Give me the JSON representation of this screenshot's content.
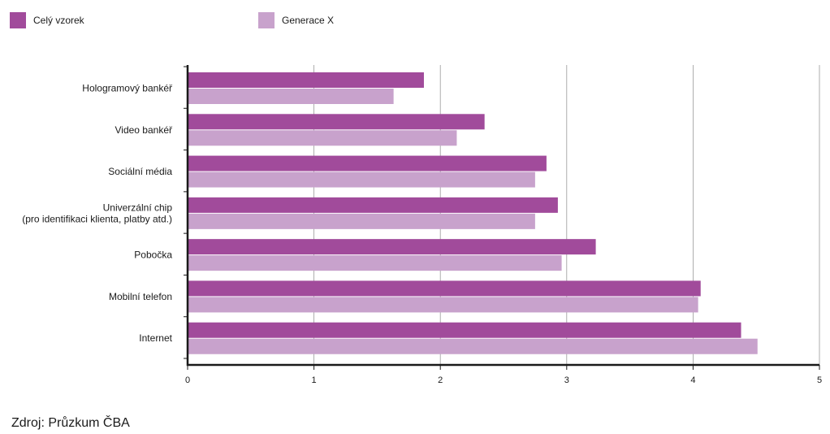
{
  "legend": {
    "items": [
      {
        "label": "Celý vzorek",
        "color": "#a14b9b"
      },
      {
        "label": "Generace X",
        "color": "#c8a2cc"
      }
    ]
  },
  "chart_data": {
    "type": "bar",
    "orientation": "horizontal",
    "categories": [
      "Hologramový bankéř",
      "Video bankéř",
      "Sociální média",
      "Univerzální chip\n(pro identifikaci klienta, platby atd.)",
      "Pobočka",
      "Mobilní telefon",
      "Internet"
    ],
    "series": [
      {
        "name": "Celý vzorek",
        "color": "#a14b9b",
        "values": [
          1.87,
          2.35,
          2.84,
          2.93,
          3.23,
          4.06,
          4.38
        ]
      },
      {
        "name": "Generace X",
        "color": "#c8a2cc",
        "values": [
          1.63,
          2.13,
          2.75,
          2.75,
          2.96,
          4.04,
          4.51
        ]
      }
    ],
    "xlim": [
      0,
      5
    ],
    "xticks": [
      "0",
      "1",
      "2",
      "3",
      "4",
      "5"
    ],
    "grid": true,
    "legend_position": "top-left"
  },
  "footer": {
    "source": "Zdroj: Průzkum ČBA"
  }
}
